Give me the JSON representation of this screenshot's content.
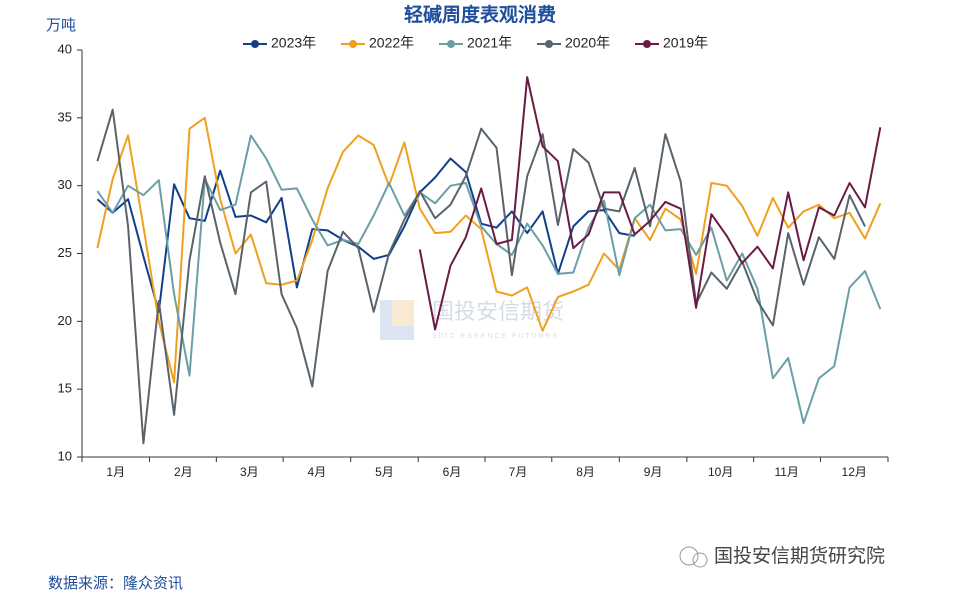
{
  "chart_data": {
    "type": "line",
    "title": "轻碱周度表观消费",
    "y_label": "万吨",
    "source": "数据来源：隆众资讯",
    "watermark": {
      "logo_text": "国投安信期货",
      "logo_subtext": "SDIC ESSENCE FUTURES",
      "brand": "国投安信期货研究院"
    },
    "x": [
      1,
      2,
      3,
      4,
      5,
      6,
      7,
      8,
      9,
      10,
      11,
      12,
      13,
      14,
      15,
      16,
      17,
      18,
      19,
      20,
      21,
      22,
      23,
      24,
      25,
      26,
      27,
      28,
      29,
      30,
      31,
      32,
      33,
      34,
      35,
      36,
      37,
      38,
      39,
      40,
      41,
      42,
      43,
      44,
      45,
      46,
      47,
      48,
      49,
      50,
      51,
      52
    ],
    "xlim": [
      0,
      52.5
    ],
    "xticks": [
      {
        "value": 2.2,
        "label": "1月"
      },
      {
        "value": 6.6,
        "label": "2月"
      },
      {
        "value": 10.9,
        "label": "3月"
      },
      {
        "value": 15.3,
        "label": "4月"
      },
      {
        "value": 19.7,
        "label": "5月"
      },
      {
        "value": 24.1,
        "label": "6月"
      },
      {
        "value": 28.4,
        "label": "7月"
      },
      {
        "value": 32.8,
        "label": "8月"
      },
      {
        "value": 37.2,
        "label": "9月"
      },
      {
        "value": 41.6,
        "label": "10月"
      },
      {
        "value": 45.9,
        "label": "11月"
      },
      {
        "value": 50.3,
        "label": "12月"
      }
    ],
    "ylim": [
      10,
      40
    ],
    "yticks": [
      10,
      15,
      20,
      25,
      30,
      35,
      40
    ],
    "grid": false,
    "legend": "top",
    "series": [
      {
        "name": "2023年",
        "color": "#123f8c",
        "values": [
          29,
          28,
          29,
          24.8,
          20.7,
          30.1,
          27.6,
          27.4,
          31.1,
          27.7,
          27.8,
          27.3,
          29.1,
          22.5,
          26.8,
          26.7,
          26,
          25.5,
          24.6,
          24.9,
          27,
          29.5,
          30.6,
          32,
          31,
          27.2,
          26.9,
          28.1,
          26.5,
          28.1,
          23.5,
          27,
          28.1,
          28.2,
          26.5,
          26.3,
          null,
          null,
          null,
          null,
          null,
          null,
          null,
          null,
          null,
          null,
          null,
          null,
          null,
          null,
          null,
          null
        ]
      },
      {
        "name": "2022年",
        "color": "#f0a01c",
        "values": [
          25.4,
          30.5,
          33.7,
          27,
          20,
          15.5,
          34.2,
          35,
          29,
          25,
          26.4,
          22.8,
          22.7,
          23,
          26,
          29.8,
          32.5,
          33.7,
          33,
          30,
          33.2,
          28.3,
          26.5,
          26.6,
          27.8,
          26.8,
          22.2,
          21.9,
          22.5,
          19.3,
          21.8,
          22.2,
          22.7,
          25,
          23.8,
          27.6,
          26,
          28.3,
          27.5,
          23.5,
          30.2,
          30,
          28.5,
          26.3,
          29.1,
          26.9,
          28.1,
          28.6,
          27.6,
          28,
          26.1,
          28.7
        ]
      },
      {
        "name": "2021年",
        "color": "#6a9fa6",
        "values": [
          29.6,
          28,
          30,
          29.3,
          30.4,
          22,
          16,
          30.5,
          28.2,
          28.6,
          33.7,
          32,
          29.7,
          29.8,
          27.5,
          25.6,
          26,
          25.7,
          27.8,
          30.2,
          27.8,
          29.5,
          28.7,
          30,
          30.2,
          27,
          25.7,
          24.9,
          27.2,
          25.6,
          23.5,
          23.6,
          26.9,
          28.9,
          23.4,
          27.6,
          28.6,
          26.7,
          26.8,
          24.9,
          26.9,
          23,
          25,
          22.4,
          15.8,
          17.3,
          12.5,
          15.8,
          16.7,
          22.5,
          23.7,
          20.9
        ]
      },
      {
        "name": "2020年",
        "color": "#59636b",
        "values": [
          31.8,
          35.6,
          27,
          11,
          21.5,
          13.1,
          24.5,
          30.7,
          25.8,
          22,
          29.5,
          30.3,
          22,
          19.5,
          15.2,
          23.7,
          26.6,
          25.4,
          20.7,
          25,
          27.5,
          29.6,
          27.6,
          28.6,
          30.7,
          34.2,
          32.8,
          23.4,
          30.7,
          33.8,
          27.1,
          32.7,
          31.7,
          28.3,
          28.1,
          31.3,
          27,
          33.8,
          30.3,
          21.3,
          23.6,
          22.4,
          24.4,
          21.5,
          19.7,
          26.5,
          22.7,
          26.2,
          24.6,
          29.3,
          27,
          null
        ]
      },
      {
        "name": "2019年",
        "color": "#6b1a45",
        "values": [
          null,
          null,
          null,
          null,
          null,
          null,
          null,
          null,
          null,
          null,
          null,
          null,
          null,
          null,
          null,
          null,
          null,
          null,
          null,
          null,
          null,
          25.3,
          19.4,
          24.1,
          26.2,
          29.8,
          25.7,
          26,
          38,
          32.9,
          31.8,
          25.4,
          26.4,
          29.5,
          29.5,
          26.4,
          27.4,
          28.8,
          28.3,
          21,
          27.9,
          26.3,
          24.3,
          25.5,
          23.9,
          29.5,
          24.5,
          28.4,
          27.8,
          30.2,
          28.4,
          34.3
        ]
      }
    ]
  }
}
